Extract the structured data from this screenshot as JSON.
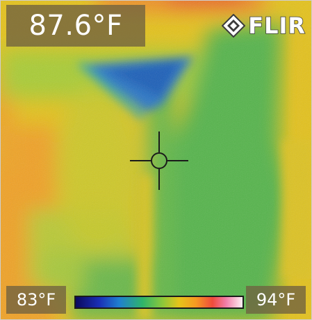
{
  "camera": {
    "spot_temperature": "87.6°F",
    "brand": "FLIR"
  },
  "scale": {
    "min_label": "83°F",
    "max_label": "94°F",
    "palette": "iron-rainbow"
  },
  "colors": {
    "overlay": "#706240",
    "text": "#ffffff"
  },
  "icons": {
    "logo_mark": "flir-diamond-icon",
    "spot_marker": "crosshair-icon"
  }
}
